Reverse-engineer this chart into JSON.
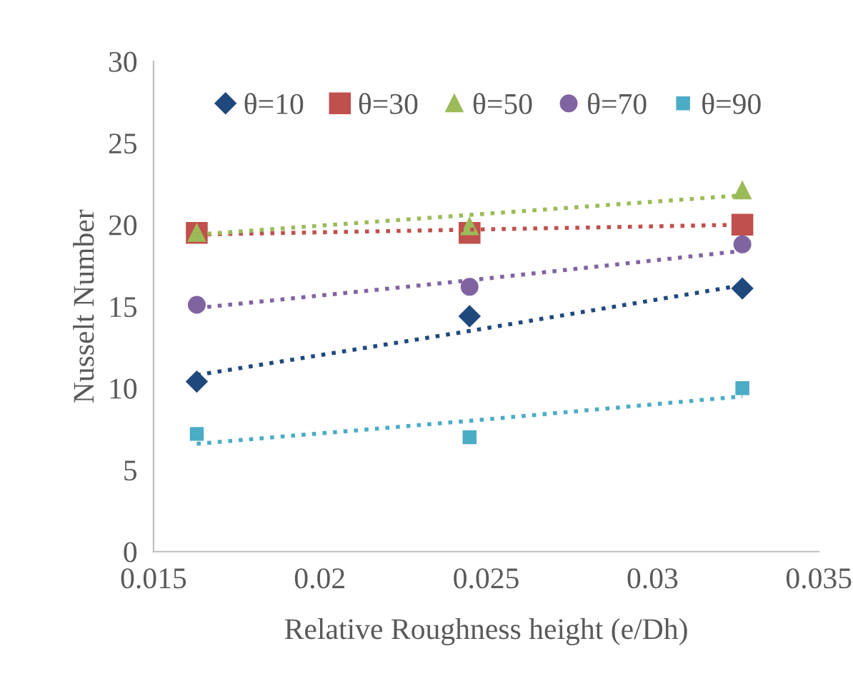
{
  "chart_data": {
    "type": "scatter",
    "xlabel": "Relative Roughness height (e/Dh)",
    "ylabel": "Nusselt Number",
    "x": [
      0.0163,
      0.0245,
      0.0327
    ],
    "xlim": [
      0.015,
      0.035
    ],
    "xticks": [
      0.015,
      0.02,
      0.025,
      0.03,
      0.035
    ],
    "ylim": [
      0,
      30
    ],
    "yticks": [
      0,
      5,
      10,
      15,
      20,
      25,
      30
    ],
    "grid": false,
    "legend": "top",
    "series": [
      {
        "name": "θ=10",
        "color": "#1f497d",
        "marker": "diamond",
        "values": [
          10.4,
          14.4,
          16.1
        ]
      },
      {
        "name": "θ=30",
        "color": "#c0504d",
        "marker": "square",
        "values": [
          19.5,
          19.5,
          20.0
        ]
      },
      {
        "name": "θ=50",
        "color": "#9bbb59",
        "marker": "triangle",
        "values": [
          19.5,
          19.9,
          22.1
        ]
      },
      {
        "name": "θ=70",
        "color": "#8064a2",
        "marker": "circle",
        "values": [
          15.1,
          16.2,
          18.8
        ]
      },
      {
        "name": "θ=90",
        "color": "#4bacc6",
        "marker": "square",
        "values": [
          7.2,
          7.0,
          10.0
        ]
      },
      {
        "type": "line",
        "color": "#1f497d",
        "line_style": "dotted",
        "marker": "none",
        "values": [
          10.8,
          13.5,
          16.3
        ]
      },
      {
        "type": "line",
        "color": "#c0504d",
        "line_style": "dotted",
        "marker": "none",
        "values": [
          19.4,
          19.7,
          20.0
        ]
      },
      {
        "type": "line",
        "color": "#9bbb59",
        "line_style": "dotted",
        "marker": "none",
        "values": [
          19.4,
          20.6,
          21.8
        ]
      },
      {
        "type": "line",
        "color": "#8064a2",
        "line_style": "dotted",
        "marker": "none",
        "values": [
          14.9,
          16.6,
          18.4
        ]
      },
      {
        "type": "line",
        "color": "#4bacc6",
        "line_style": "dotted",
        "marker": "none",
        "values": [
          6.6,
          8.0,
          9.5
        ]
      }
    ]
  }
}
